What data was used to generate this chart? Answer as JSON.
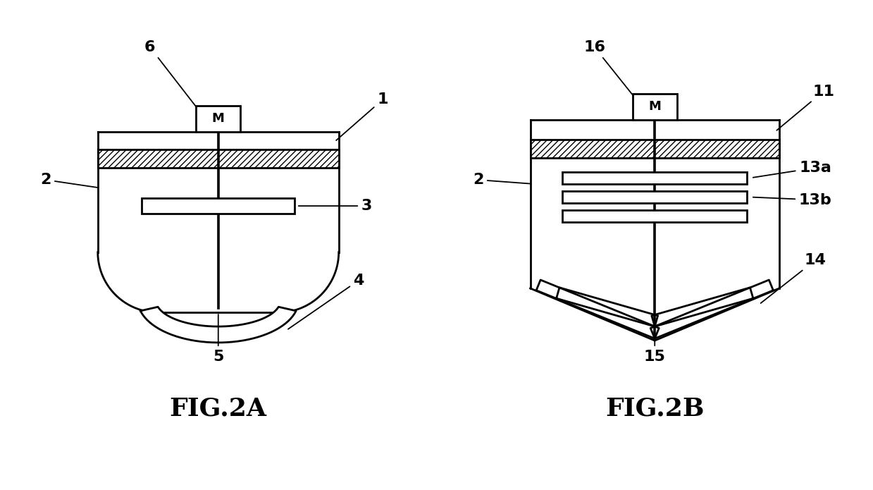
{
  "bg_color": "#ffffff",
  "line_color": "#000000",
  "lw": 2.0,
  "annotation_fontsize": 16,
  "fig_label_fontsize": 26,
  "motor_label": "M",
  "fig_labels": [
    "FIG.2A",
    "FIG.2B"
  ]
}
